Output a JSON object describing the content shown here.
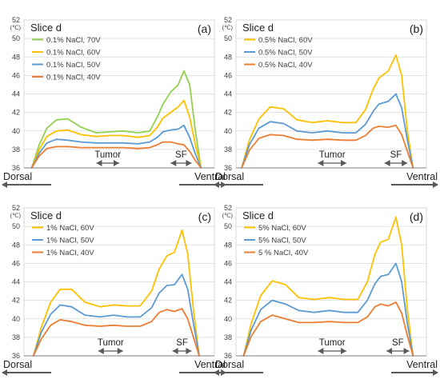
{
  "shared": {
    "y_unit": "(℃)",
    "left_label": "Dorsal",
    "right_label": "Ventral",
    "tumor_label": "Tumor",
    "sf_label": "SF",
    "colors": {
      "green": "#92d050",
      "yellow": "#ffc000",
      "blue": "#5b9bd5",
      "orange": "#ed7d31",
      "axis": "#7f7f7f",
      "grid": "#d9d9d9",
      "arrow": "#595959"
    }
  },
  "chart_data": [
    {
      "type": "line",
      "panel": "(a)",
      "title": "Slice d",
      "ylim": [
        36,
        52
      ],
      "yticks": [
        36,
        38,
        40,
        42,
        44,
        46,
        48,
        50,
        52
      ],
      "xlim": [
        0,
        1
      ],
      "grid": true,
      "legend": "top-left",
      "tumor_range": [
        0.38,
        0.5
      ],
      "sf_range": [
        0.77,
        0.88
      ],
      "series": [
        {
          "name": "0.1% NaCl, 70V",
          "color_key": "green",
          "x": [
            0.04,
            0.08,
            0.12,
            0.17,
            0.23,
            0.3,
            0.38,
            0.45,
            0.52,
            0.6,
            0.66,
            0.7,
            0.73,
            0.77,
            0.81,
            0.84,
            0.87,
            0.9,
            0.93
          ],
          "y": [
            36,
            38.5,
            40.3,
            41.2,
            41.3,
            40.4,
            39.8,
            39.9,
            40.0,
            39.8,
            40.0,
            41.5,
            42.9,
            44.2,
            45.0,
            46.5,
            45.0,
            40.0,
            36
          ]
        },
        {
          "name": "0.1% NaCl, 60V",
          "color_key": "yellow",
          "x": [
            0.04,
            0.08,
            0.12,
            0.17,
            0.23,
            0.3,
            0.38,
            0.45,
            0.52,
            0.6,
            0.66,
            0.7,
            0.73,
            0.77,
            0.81,
            0.84,
            0.87,
            0.9,
            0.93
          ],
          "y": [
            36,
            38.0,
            39.4,
            40.0,
            40.1,
            39.6,
            39.4,
            39.5,
            39.5,
            39.3,
            39.5,
            40.4,
            41.4,
            42.0,
            42.6,
            43.3,
            41.5,
            38.5,
            36
          ]
        },
        {
          "name": "0.1% NaCl, 50V",
          "color_key": "blue",
          "x": [
            0.04,
            0.08,
            0.12,
            0.17,
            0.23,
            0.3,
            0.38,
            0.45,
            0.52,
            0.6,
            0.66,
            0.7,
            0.73,
            0.77,
            0.81,
            0.84,
            0.87,
            0.9,
            0.93
          ],
          "y": [
            36,
            37.6,
            38.7,
            39.1,
            39.0,
            38.8,
            38.7,
            38.7,
            38.7,
            38.6,
            38.8,
            39.3,
            39.9,
            40.1,
            40.2,
            40.6,
            39.3,
            37.5,
            36
          ]
        },
        {
          "name": "0.1% NaCl, 40V",
          "color_key": "orange",
          "x": [
            0.04,
            0.08,
            0.12,
            0.17,
            0.23,
            0.3,
            0.38,
            0.45,
            0.52,
            0.6,
            0.66,
            0.7,
            0.73,
            0.77,
            0.81,
            0.84,
            0.87,
            0.9,
            0.93
          ],
          "y": [
            36,
            37.3,
            38.1,
            38.3,
            38.3,
            38.2,
            38.2,
            38.2,
            38.2,
            38.1,
            38.2,
            38.5,
            38.8,
            38.8,
            38.6,
            38.5,
            37.8,
            36.8,
            36
          ]
        }
      ]
    },
    {
      "type": "line",
      "panel": "(b)",
      "title": "Slice d",
      "ylim": [
        36,
        52
      ],
      "yticks": [
        36,
        38,
        40,
        42,
        44,
        46,
        48,
        50,
        52
      ],
      "xlim": [
        0,
        1
      ],
      "grid": true,
      "legend": "top-left",
      "tumor_range": [
        0.43,
        0.58
      ],
      "sf_range": [
        0.78,
        0.9
      ],
      "series": [
        {
          "name": "0.5% NaCl, 60V",
          "color_key": "yellow",
          "x": [
            0.03,
            0.07,
            0.12,
            0.18,
            0.25,
            0.32,
            0.4,
            0.48,
            0.56,
            0.63,
            0.68,
            0.72,
            0.75,
            0.8,
            0.84,
            0.87,
            0.9,
            0.93
          ],
          "y": [
            36,
            39.0,
            41.3,
            42.6,
            42.4,
            41.2,
            40.9,
            41.1,
            40.9,
            40.9,
            42.3,
            44.5,
            45.7,
            46.5,
            48.2,
            46.0,
            40.0,
            36
          ]
        },
        {
          "name": "0.5% NaCl, 50V",
          "color_key": "blue",
          "x": [
            0.03,
            0.07,
            0.12,
            0.18,
            0.25,
            0.32,
            0.4,
            0.48,
            0.56,
            0.63,
            0.68,
            0.72,
            0.75,
            0.8,
            0.84,
            0.87,
            0.9,
            0.93
          ],
          "y": [
            36,
            38.5,
            40.3,
            41.0,
            40.8,
            40.0,
            39.8,
            40.0,
            39.8,
            39.8,
            40.7,
            42.1,
            42.9,
            43.2,
            44.0,
            42.5,
            39.0,
            36
          ]
        },
        {
          "name": "0.5% NaCl, 40V",
          "color_key": "orange",
          "x": [
            0.03,
            0.07,
            0.12,
            0.18,
            0.25,
            0.32,
            0.4,
            0.48,
            0.56,
            0.63,
            0.68,
            0.72,
            0.75,
            0.8,
            0.84,
            0.87,
            0.9,
            0.93
          ],
          "y": [
            36,
            37.9,
            39.2,
            39.6,
            39.5,
            39.1,
            39.0,
            39.1,
            39.0,
            39.0,
            39.5,
            40.3,
            40.5,
            40.4,
            40.6,
            39.6,
            37.8,
            36
          ]
        }
      ]
    },
    {
      "type": "line",
      "panel": "(c)",
      "title": "Slice d",
      "ylim": [
        36,
        52
      ],
      "yticks": [
        36,
        38,
        40,
        42,
        44,
        46,
        48,
        50,
        52
      ],
      "xlim": [
        0,
        1
      ],
      "grid": true,
      "legend": "top-left",
      "tumor_range": [
        0.39,
        0.52
      ],
      "sf_range": [
        0.78,
        0.88
      ],
      "series": [
        {
          "name": "1% NaCl, 60V",
          "color_key": "yellow",
          "x": [
            0.05,
            0.09,
            0.14,
            0.19,
            0.25,
            0.32,
            0.4,
            0.47,
            0.54,
            0.61,
            0.67,
            0.71,
            0.75,
            0.79,
            0.83,
            0.86,
            0.89,
            0.92
          ],
          "y": [
            36,
            39.0,
            41.8,
            43.2,
            43.2,
            41.8,
            41.3,
            41.5,
            41.4,
            41.4,
            43.0,
            45.4,
            46.8,
            47.2,
            49.6,
            47.0,
            41.0,
            36
          ]
        },
        {
          "name": "1% NaCl, 50V",
          "color_key": "blue",
          "x": [
            0.05,
            0.09,
            0.14,
            0.19,
            0.25,
            0.32,
            0.4,
            0.47,
            0.54,
            0.61,
            0.67,
            0.71,
            0.75,
            0.79,
            0.83,
            0.86,
            0.89,
            0.92
          ],
          "y": [
            36,
            38.5,
            40.5,
            41.5,
            41.3,
            40.4,
            40.2,
            40.4,
            40.2,
            40.2,
            41.2,
            42.8,
            43.6,
            43.7,
            44.8,
            43.2,
            39.5,
            36
          ]
        },
        {
          "name": "1% NaCl, 40V",
          "color_key": "orange",
          "x": [
            0.05,
            0.09,
            0.14,
            0.19,
            0.25,
            0.32,
            0.4,
            0.47,
            0.54,
            0.61,
            0.67,
            0.71,
            0.75,
            0.79,
            0.83,
            0.86,
            0.89,
            0.92
          ],
          "y": [
            36,
            37.8,
            39.3,
            39.9,
            39.7,
            39.3,
            39.2,
            39.3,
            39.2,
            39.2,
            39.7,
            40.7,
            41.0,
            40.8,
            41.1,
            40.0,
            38.0,
            36
          ]
        }
      ]
    },
    {
      "type": "line",
      "panel": "(d)",
      "title": "Slice d",
      "ylim": [
        36,
        52
      ],
      "yticks": [
        36,
        38,
        40,
        42,
        44,
        46,
        48,
        50,
        52
      ],
      "xlim": [
        0,
        1
      ],
      "grid": true,
      "legend": "top-left",
      "tumor_range": [
        0.43,
        0.58
      ],
      "sf_range": [
        0.79,
        0.91
      ],
      "series": [
        {
          "name": "5% NaCl, 60V",
          "color_key": "yellow",
          "x": [
            0.04,
            0.08,
            0.13,
            0.19,
            0.26,
            0.33,
            0.41,
            0.49,
            0.57,
            0.64,
            0.69,
            0.73,
            0.76,
            0.8,
            0.84,
            0.87,
            0.9,
            0.93
          ],
          "y": [
            36,
            39.5,
            42.5,
            44.1,
            43.7,
            42.3,
            42.1,
            42.3,
            42.1,
            42.1,
            44.0,
            47.0,
            48.3,
            48.6,
            51.0,
            48.0,
            41.0,
            36
          ]
        },
        {
          "name": "5% NaCl, 50V",
          "color_key": "blue",
          "x": [
            0.04,
            0.08,
            0.13,
            0.19,
            0.26,
            0.33,
            0.41,
            0.49,
            0.57,
            0.64,
            0.69,
            0.73,
            0.76,
            0.8,
            0.84,
            0.87,
            0.9,
            0.93
          ],
          "y": [
            36,
            38.8,
            41.0,
            42.0,
            41.6,
            40.9,
            40.7,
            40.9,
            40.7,
            40.7,
            42.0,
            43.8,
            44.6,
            44.8,
            46.0,
            44.0,
            39.5,
            36
          ]
        },
        {
          "name": "5 % NaCl, 40V",
          "color_key": "orange",
          "x": [
            0.04,
            0.08,
            0.13,
            0.19,
            0.26,
            0.33,
            0.41,
            0.49,
            0.57,
            0.64,
            0.69,
            0.73,
            0.76,
            0.8,
            0.84,
            0.87,
            0.9,
            0.93
          ],
          "y": [
            36,
            38.1,
            39.7,
            40.4,
            40.0,
            39.6,
            39.6,
            39.7,
            39.6,
            39.6,
            40.2,
            41.3,
            41.6,
            41.4,
            41.8,
            40.6,
            38.2,
            36
          ]
        }
      ]
    }
  ]
}
